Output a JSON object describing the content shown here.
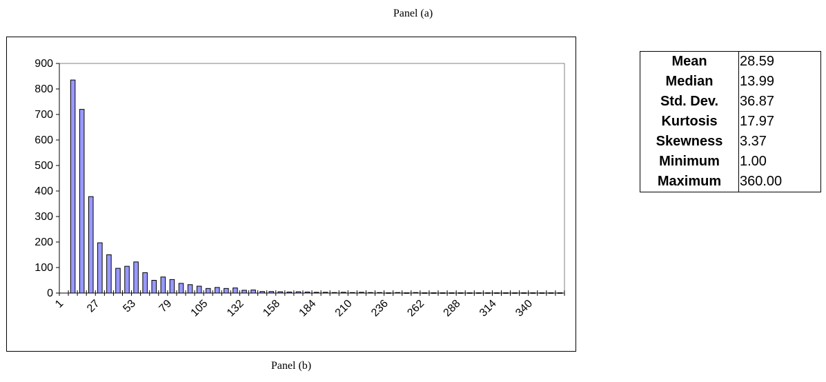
{
  "captions": {
    "top": "Panel (a)",
    "bottom": "Panel (b)"
  },
  "colors": {
    "bar_fill": "#9999ff",
    "bar_stroke": "#000000",
    "axis": "#000000",
    "plot_border": "#808080"
  },
  "chart_data": {
    "type": "bar",
    "title": "",
    "xlabel": "",
    "ylabel": "",
    "ylim": [
      0,
      900
    ],
    "yticks": [
      0,
      100,
      200,
      300,
      400,
      500,
      600,
      700,
      800,
      900
    ],
    "grid": false,
    "x_tick_labels": [
      "1",
      "27",
      "53",
      "79",
      "105",
      "132",
      "158",
      "184",
      "210",
      "236",
      "262",
      "288",
      "314",
      "340"
    ],
    "series": [
      {
        "values": [
          0,
          835,
          720,
          378,
          197,
          150,
          97,
          105,
          122,
          80,
          50,
          63,
          53,
          38,
          33,
          27,
          18,
          22,
          18,
          20,
          11,
          12,
          6,
          6,
          5,
          4,
          5,
          4,
          3,
          3,
          2,
          3,
          2,
          3,
          2,
          2,
          1,
          2,
          1,
          2,
          1,
          1,
          1,
          1,
          1,
          1,
          1,
          1,
          1,
          1,
          1,
          1,
          1,
          1,
          1,
          1
        ]
      }
    ]
  },
  "stats": [
    {
      "label": "Mean",
      "value": "28.59"
    },
    {
      "label": "Median",
      "value": "13.99"
    },
    {
      "label": "Std. Dev.",
      "value": "36.87"
    },
    {
      "label": "Kurtosis",
      "value": "17.97"
    },
    {
      "label": "Skewness",
      "value": "3.37"
    },
    {
      "label": "Minimum",
      "value": "1.00"
    },
    {
      "label": "Maximum",
      "value": "360.00"
    }
  ]
}
